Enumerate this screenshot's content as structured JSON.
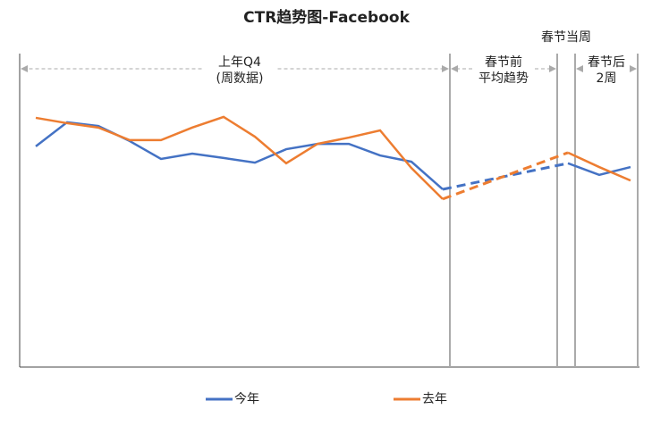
{
  "chart_data": {
    "type": "line",
    "title": "CTR趋势图-Facebook",
    "categories": [
      null,
      null,
      null,
      null,
      null,
      null,
      null,
      null,
      null,
      null,
      null,
      null,
      null,
      null,
      null,
      null,
      null,
      null,
      null,
      null
    ],
    "series": [
      {
        "name": "今年",
        "color": "#4472c4",
        "values": [
          70.4,
          78.1,
          76.9,
          72.1,
          66.4,
          68.1,
          66.7,
          65.2,
          69.5,
          71.2,
          71.2,
          67.5,
          65.5,
          56.7,
          null,
          null,
          null,
          65.0,
          61.3,
          63.8
        ]
      },
      {
        "name": "去年",
        "color": "#ed7d31",
        "values": [
          79.5,
          77.8,
          76.4,
          72.4,
          72.4,
          76.4,
          79.8,
          73.5,
          65.0,
          71.2,
          73.2,
          75.5,
          63.5,
          53.6,
          null,
          null,
          null,
          68.4,
          63.8,
          59.5
        ]
      }
    ],
    "gap_style": "dashed",
    "ylim": [
      0,
      100
    ],
    "annotations": [
      {
        "lines": [
          "上年Q4",
          "(周数据)"
        ]
      },
      {
        "lines": [
          "春节前",
          "平均趋势"
        ]
      },
      {
        "lines": [
          "春节当周"
        ]
      },
      {
        "lines": [
          "春节后",
          "2周"
        ]
      }
    ],
    "legend": "bottom"
  }
}
